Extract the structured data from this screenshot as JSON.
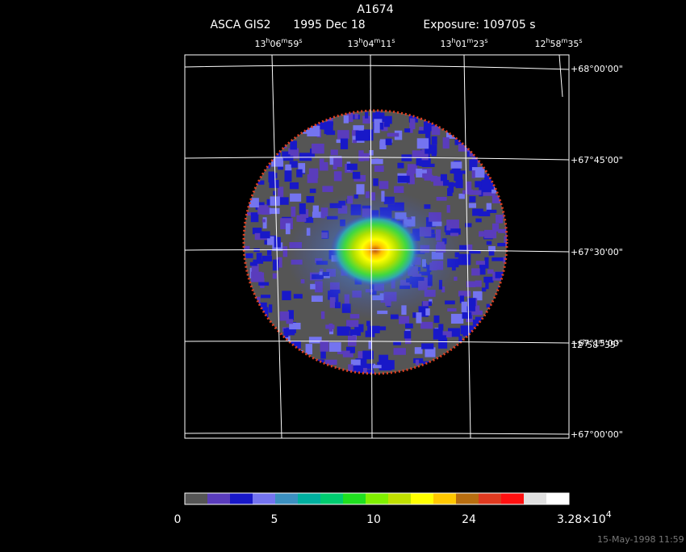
{
  "header": {
    "title": "A1674",
    "instrument": "ASCA GIS2",
    "date": "1995 Dec 18",
    "exposure": "Exposure: 109705 s"
  },
  "ra_labels": [
    [
      "13",
      "h",
      "06",
      "m",
      "59",
      "s"
    ],
    [
      "13",
      "h",
      "04",
      "m",
      "11",
      "s"
    ],
    [
      "13",
      "h",
      "01",
      "m",
      "23",
      "s"
    ],
    [
      "12",
      "h",
      "58",
      "m",
      "35",
      "s"
    ]
  ],
  "overlap_ra_label": [
    "12",
    "h",
    "58",
    "m",
    "35",
    "s"
  ],
  "dec_labels": [
    "+68°00'00\"",
    "+67°45'00\"",
    "+67°30'00\"",
    "+67°15'00\"",
    "+67°00'00\""
  ],
  "colorbar": {
    "colors": [
      "#555555",
      "#5a3cbc",
      "#1818c8",
      "#7474f0",
      "#3c90c0",
      "#00b0a0",
      "#00cc70",
      "#20e020",
      "#80f000",
      "#c0e000",
      "#ffff00",
      "#ffc800",
      "#b86e10",
      "#e03a20",
      "#ff1010",
      "#e0e0e0",
      "#ffffff"
    ],
    "labels": [
      "0",
      "5",
      "10",
      "24"
    ],
    "max_label": {
      "mantissa": "3.28×10",
      "exponent": "4"
    }
  },
  "footer": "15-May-1998 11:59"
}
